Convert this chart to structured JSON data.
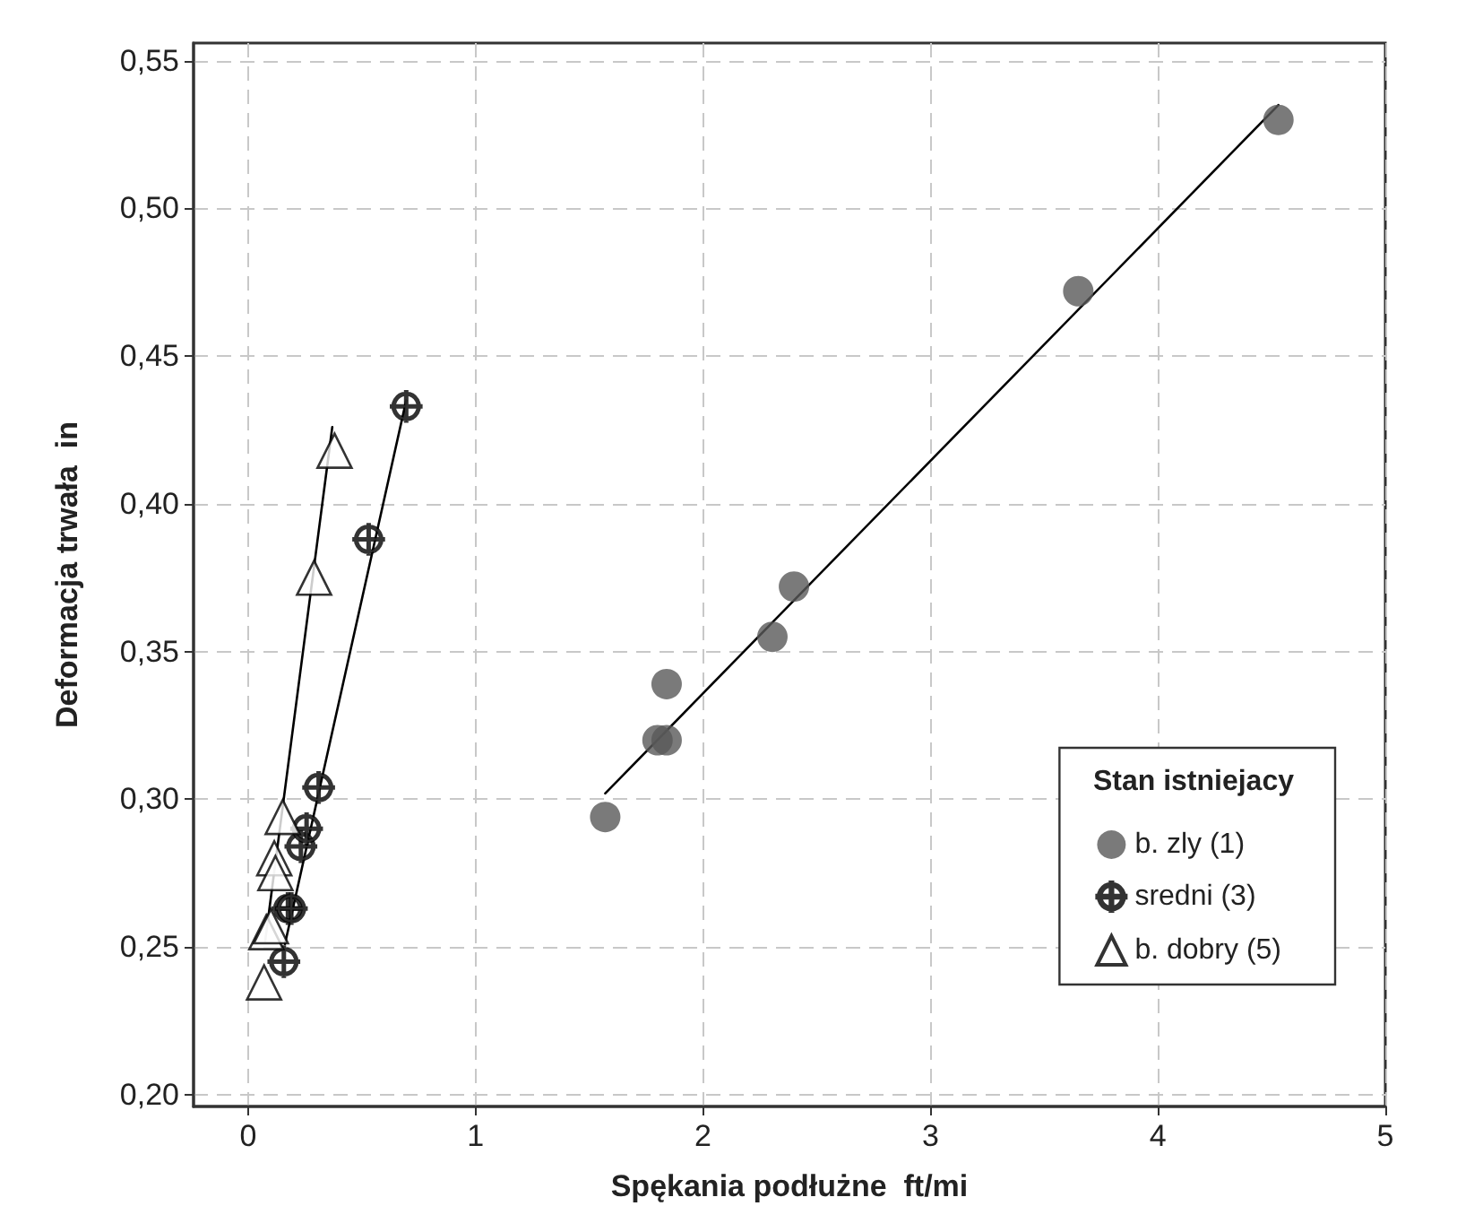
{
  "chart_data": {
    "type": "scatter",
    "xlabel": "Spękania podłużne  ft/mi",
    "ylabel": "Deformacja trwała  in",
    "legend_title": "Stan istniejacy",
    "legend": "bottom right",
    "grid": true,
    "xlim": [
      -0.24,
      5
    ],
    "xticks": [
      0,
      1,
      2,
      3,
      4,
      5
    ],
    "ylim": [
      0.196,
      0.556
    ],
    "yticks": [
      {
        "value": 0.2,
        "label": "0,20"
      },
      {
        "value": 0.25,
        "label": "0,25"
      },
      {
        "value": 0.3,
        "label": "0,30"
      },
      {
        "value": 0.35,
        "label": "0,35"
      },
      {
        "value": 0.4,
        "label": "0,40"
      },
      {
        "value": 0.45,
        "label": "0,45"
      },
      {
        "value": 0.5,
        "label": "0,50"
      },
      {
        "value": 0.55,
        "label": "0,55"
      }
    ],
    "series": [
      {
        "name": "b. zly (1)",
        "marker": "circle",
        "color": "#595959",
        "x": [
          1.57,
          1.84,
          1.8,
          1.84,
          2.305,
          2.4,
          3.65,
          4.53
        ],
        "values": [
          0.294,
          0.339,
          0.32,
          0.32,
          0.355,
          0.372,
          0.472,
          0.53
        ]
      },
      {
        "name": "sredni (3)",
        "marker": "cross",
        "color": "#000000",
        "x": [
          0.157,
          0.175,
          0.19,
          0.232,
          0.257,
          0.31,
          0.53,
          0.695
        ],
        "values": [
          0.245,
          0.263,
          0.263,
          0.284,
          0.29,
          0.304,
          0.388,
          0.433
        ]
      },
      {
        "name": "b. dobry (5)",
        "marker": "triangle",
        "color": "#000000",
        "x": [
          0.07,
          0.08,
          0.1,
          0.115,
          0.12,
          0.152,
          0.29,
          0.38
        ],
        "values": [
          0.238,
          0.255,
          0.257,
          0.28,
          0.275,
          0.294,
          0.375,
          0.418
        ]
      },
      {
        "type": "line",
        "color": "#000000",
        "x": [
          1.57,
          4.53
        ],
        "values": [
          0.302,
          0.535
        ]
      },
      {
        "type": "line",
        "color": "#000000",
        "x": [
          0.162,
          0.695
        ],
        "values": [
          0.251,
          0.435
        ]
      },
      {
        "type": "line",
        "color": "#000000",
        "x": [
          0.075,
          0.37
        ],
        "values": [
          0.252,
          0.426
        ]
      }
    ]
  }
}
